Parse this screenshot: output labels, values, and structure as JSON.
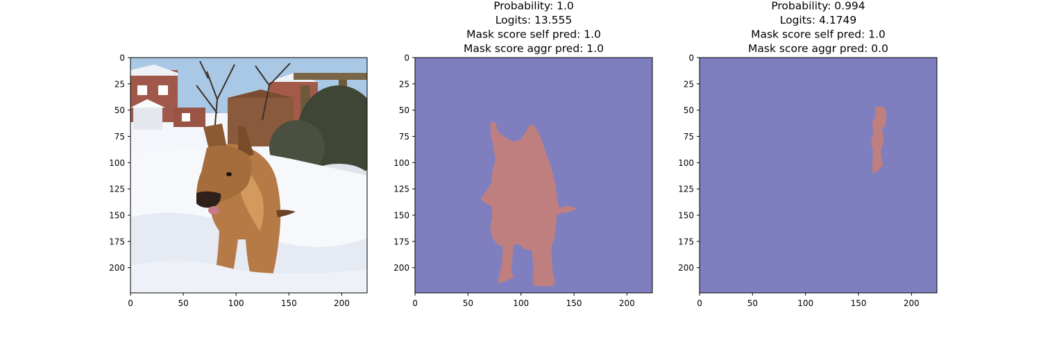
{
  "colors": {
    "mask_background": "#7f7fbf",
    "mask_foreground": "#bf7f7f",
    "sky": "#a9c8e6",
    "snow": "#f4f6fb",
    "brick": "#a0584b",
    "fence": "#8a5a3c",
    "dog_fur": "#b57a45",
    "dog_dark": "#3a2a1e",
    "axis": "#000000"
  },
  "chart_data": [
    {
      "type": "image",
      "content": "photo of a German Shepherd puppy sitting in snow in a garden",
      "title_lines": [],
      "xticks": [
        0,
        50,
        100,
        150,
        200
      ],
      "yticks": [
        0,
        25,
        50,
        75,
        100,
        125,
        150,
        175,
        200
      ],
      "xlim": [
        0,
        224
      ],
      "ylim": [
        224,
        0
      ]
    },
    {
      "type": "heatmap",
      "title_lines": [
        "Probability: 1.0",
        "Logits: 13.555",
        "Mask score self pred: 1.0",
        "Mask score aggr pred: 1.0"
      ],
      "xticks": [
        0,
        50,
        100,
        150,
        200
      ],
      "yticks": [
        0,
        25,
        50,
        75,
        100,
        125,
        150,
        175,
        200
      ],
      "xlim": [
        0,
        224
      ],
      "ylim": [
        224,
        0
      ],
      "mask_polygon": [
        [
          72,
          61
        ],
        [
          76,
          62
        ],
        [
          78,
          70
        ],
        [
          84,
          75
        ],
        [
          92,
          80
        ],
        [
          100,
          78
        ],
        [
          105,
          70
        ],
        [
          108,
          64
        ],
        [
          113,
          65
        ],
        [
          117,
          72
        ],
        [
          120,
          80
        ],
        [
          124,
          92
        ],
        [
          128,
          103
        ],
        [
          131,
          114
        ],
        [
          133,
          124
        ],
        [
          134,
          133
        ],
        [
          136,
          143
        ],
        [
          145,
          141
        ],
        [
          153,
          144
        ],
        [
          146,
          147
        ],
        [
          138,
          148
        ],
        [
          134,
          150
        ],
        [
          133,
          160
        ],
        [
          132,
          170
        ],
        [
          131,
          176
        ],
        [
          129,
          177
        ],
        [
          129,
          192
        ],
        [
          130,
          205
        ],
        [
          132,
          212
        ],
        [
          131,
          217
        ],
        [
          122,
          218
        ],
        [
          112,
          217
        ],
        [
          111,
          210
        ],
        [
          112,
          200
        ],
        [
          110,
          183
        ],
        [
          104,
          183
        ],
        [
          100,
          179
        ],
        [
          98,
          178
        ],
        [
          93,
          178
        ],
        [
          92,
          190
        ],
        [
          91,
          202
        ],
        [
          93,
          209
        ],
        [
          85,
          213
        ],
        [
          78,
          215
        ],
        [
          80,
          205
        ],
        [
          82,
          195
        ],
        [
          83,
          180
        ],
        [
          78,
          178
        ],
        [
          73,
          172
        ],
        [
          71,
          160
        ],
        [
          73,
          150
        ],
        [
          72,
          141
        ],
        [
          65,
          138
        ],
        [
          62,
          134
        ],
        [
          67,
          127
        ],
        [
          72,
          120
        ],
        [
          73,
          108
        ],
        [
          76,
          97
        ],
        [
          74,
          85
        ],
        [
          72,
          75
        ],
        [
          71,
          66
        ]
      ]
    },
    {
      "type": "heatmap",
      "title_lines": [
        "Probability: 0.994",
        "Logits: 4.1749",
        "Mask score self pred: 1.0",
        "Mask score aggr pred: 0.0"
      ],
      "xticks": [
        0,
        50,
        100,
        150,
        200
      ],
      "yticks": [
        0,
        25,
        50,
        75,
        100,
        125,
        150,
        175,
        200
      ],
      "xlim": [
        0,
        224
      ],
      "ylim": [
        224,
        0
      ],
      "mask_polygon": [
        [
          166,
          47
        ],
        [
          174,
          47
        ],
        [
          176,
          52
        ],
        [
          176,
          64
        ],
        [
          172,
          68
        ],
        [
          174,
          78
        ],
        [
          171,
          90
        ],
        [
          173,
          102
        ],
        [
          170,
          106
        ],
        [
          165,
          110
        ],
        [
          163,
          109
        ],
        [
          163,
          100
        ],
        [
          164,
          90
        ],
        [
          162,
          80
        ],
        [
          164,
          72
        ],
        [
          163,
          62
        ],
        [
          166,
          56
        ]
      ]
    }
  ]
}
